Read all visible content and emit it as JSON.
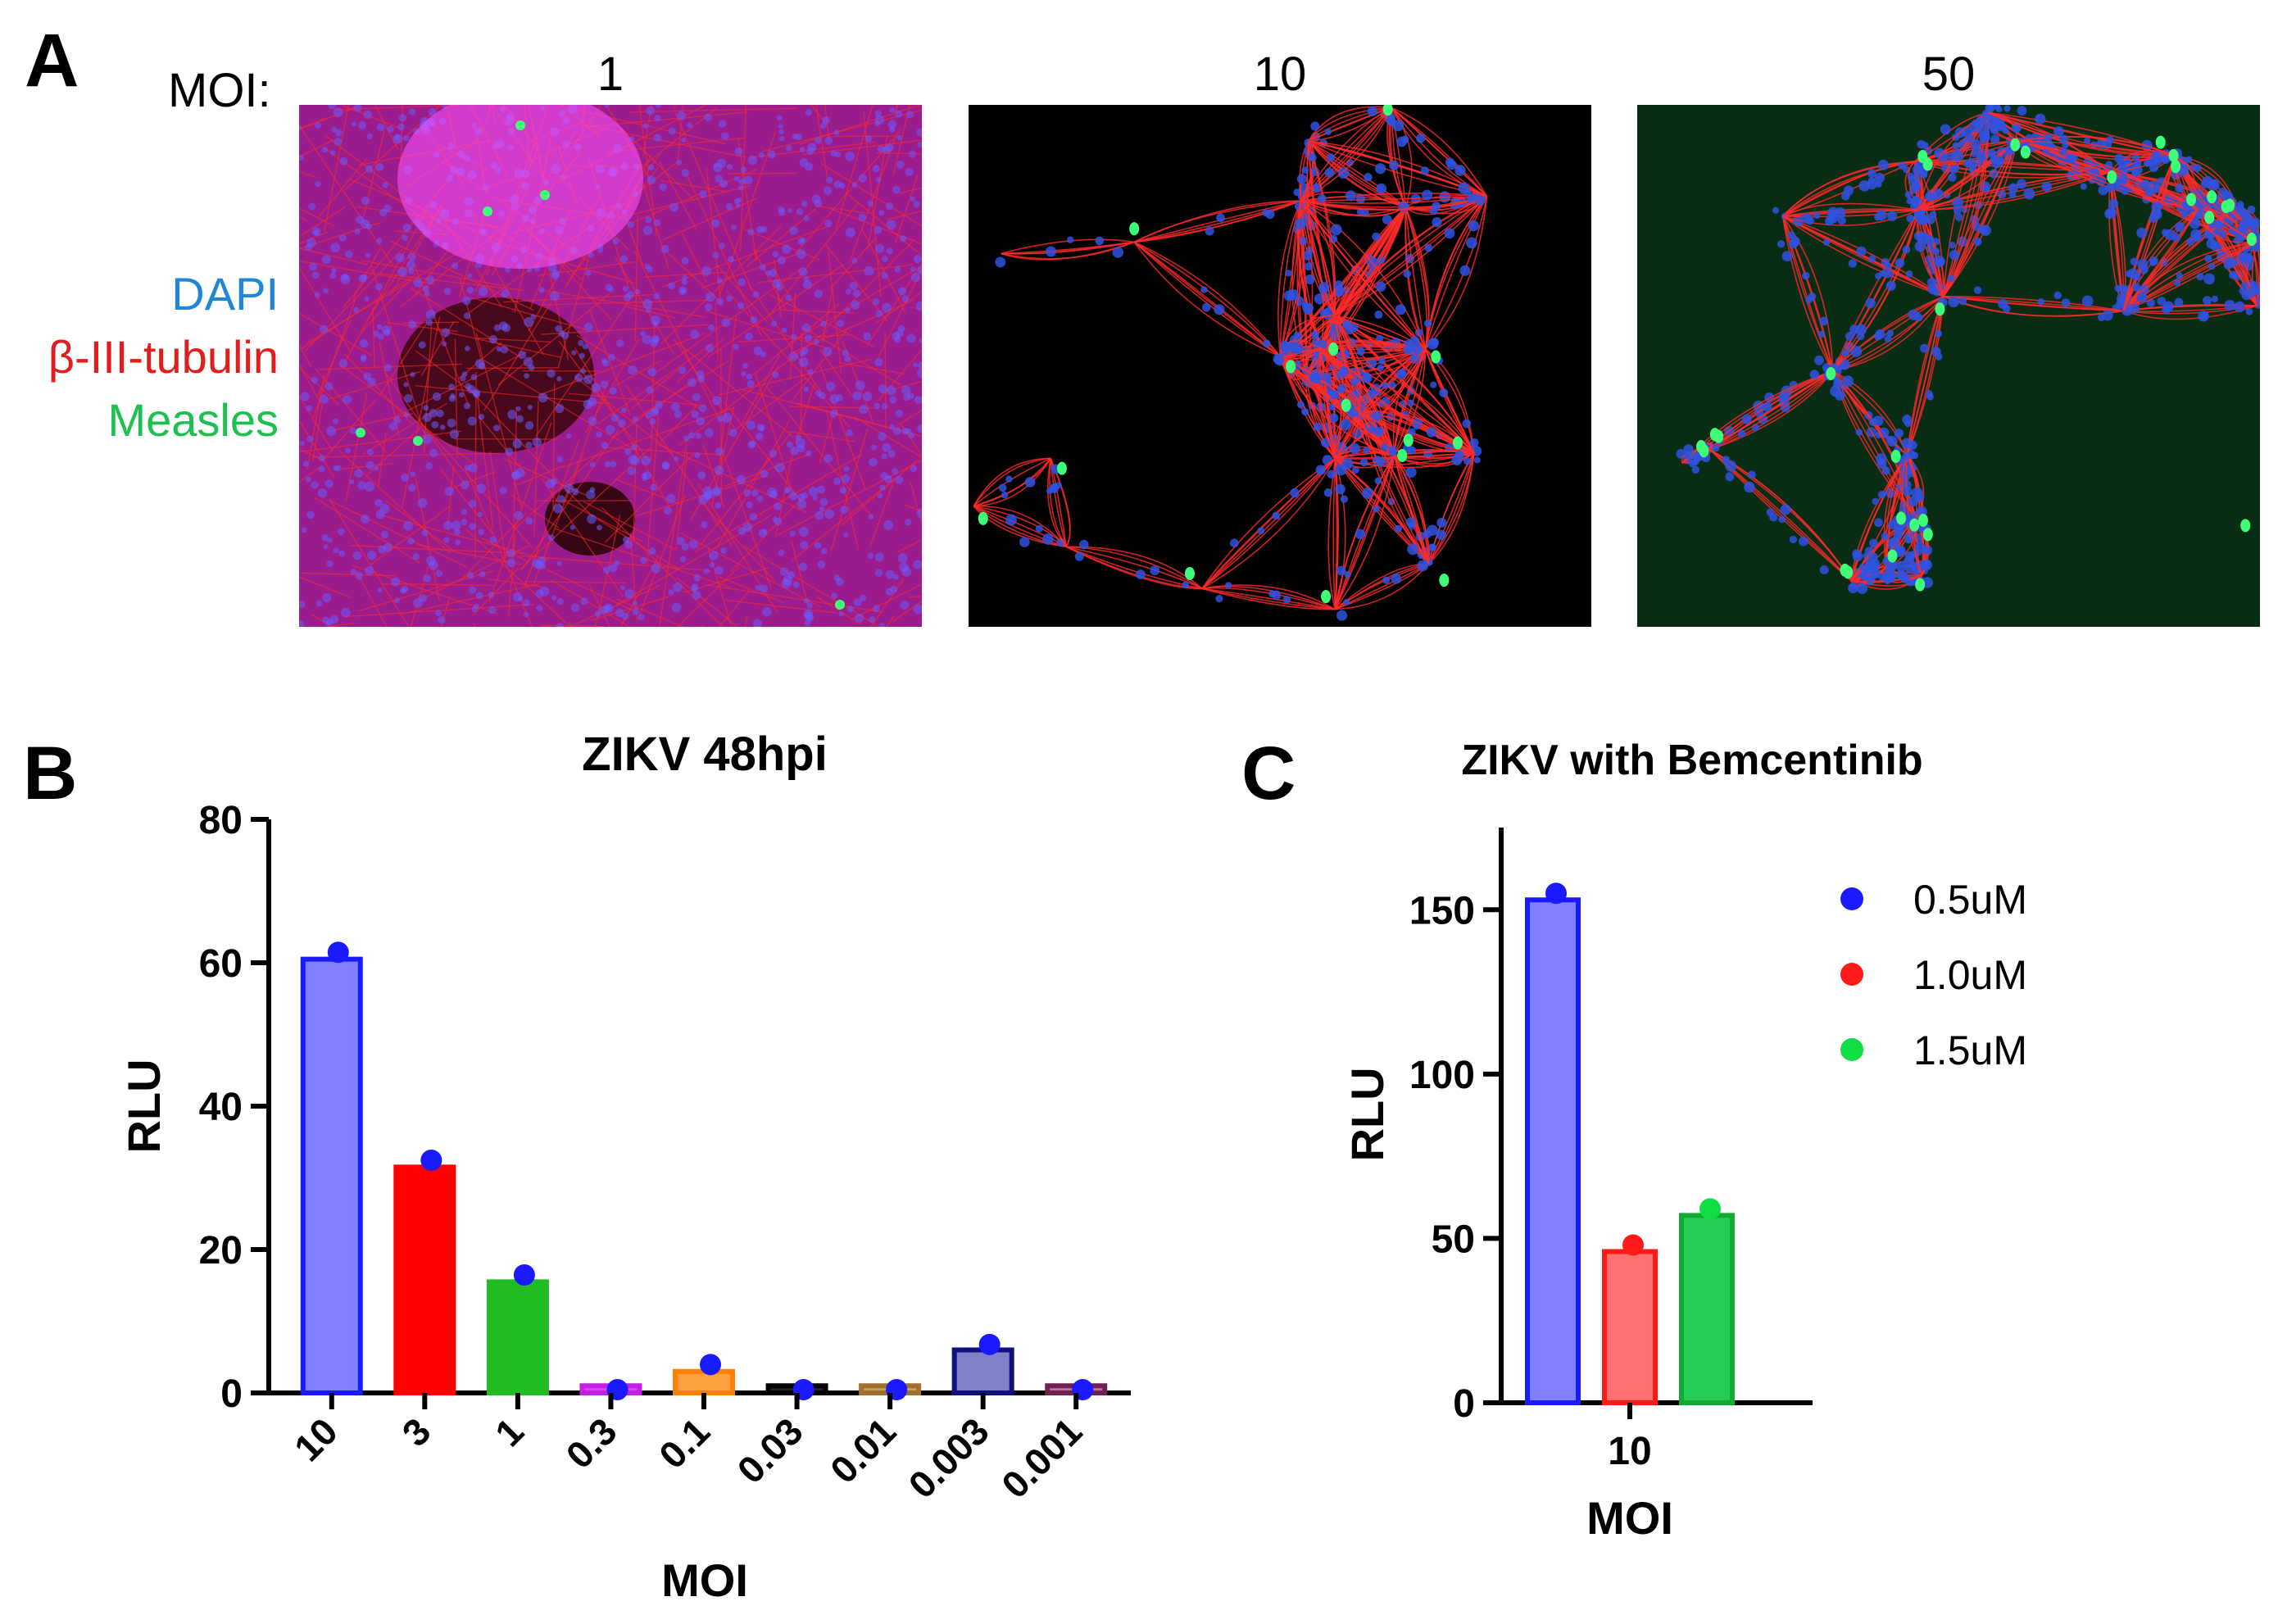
{
  "panelA": {
    "letter": "A",
    "moi_label": "MOI:",
    "images": [
      {
        "moi": "1",
        "style": "dense"
      },
      {
        "moi": "10",
        "style": "network"
      },
      {
        "moi": "50",
        "style": "spread"
      }
    ],
    "stain_legend": [
      {
        "text": "DAPI",
        "color": "#1f87d6"
      },
      {
        "text": "β-III-tubulin",
        "color": "#e11d1d"
      },
      {
        "text": "Measles",
        "color": "#1ec050"
      }
    ]
  },
  "colors": {
    "nuclei": "#2f52e0",
    "tubulin": "#ff2a2a",
    "measles": "#3dff7a",
    "axis": "#000000",
    "dot": "#1a1aff"
  },
  "chart_data": [
    {
      "panel": "B",
      "type": "bar",
      "title": "ZIKV 48hpi",
      "xlabel": "MOI",
      "ylabel": "RLU",
      "ylim": [
        0,
        80
      ],
      "yticks": [
        0,
        20,
        40,
        60,
        80
      ],
      "grid": false,
      "categories": [
        "10",
        "3",
        "1",
        "0.3",
        "0.1",
        "0.03",
        "0.01",
        "0.003",
        "0.001"
      ],
      "values": [
        60.5,
        31.5,
        15.5,
        1,
        3,
        1,
        1,
        6,
        1
      ],
      "points": [
        61,
        32,
        16,
        0,
        3.5,
        0,
        0,
        6.3,
        0
      ],
      "bar_colors": [
        "#8080ff",
        "#ff0000",
        "#22bb22",
        "#e040ff",
        "#ffa040",
        "#222222",
        "#c8a060",
        "#8080c8",
        "#c070a0"
      ],
      "edge_colors": [
        "#1a1aff",
        "#ff0000",
        "#22bb22",
        "#c020e0",
        "#ff8000",
        "#000000",
        "#a07030",
        "#101080",
        "#702050"
      ]
    },
    {
      "panel": "C",
      "type": "bar",
      "title": "ZIKV with Bemcentinib",
      "xlabel": "MOI",
      "ylabel": "RLU",
      "ylim": [
        0,
        175
      ],
      "yticks": [
        0,
        50,
        100,
        150
      ],
      "grid": false,
      "categories": [
        "10"
      ],
      "series": [
        {
          "name": "0.5uM",
          "values": [
            153
          ],
          "point": 154,
          "color": "#8080ff",
          "edge": "#1a1aff",
          "dot": "#1a1aff"
        },
        {
          "name": "1.0uM",
          "values": [
            46
          ],
          "point": 47,
          "color": "#ff7070",
          "edge": "#ff1a1a",
          "dot": "#ff1a1a"
        },
        {
          "name": "1.5uM",
          "values": [
            57
          ],
          "point": 58,
          "color": "#22cc55",
          "edge": "#11aa33",
          "dot": "#11dd44"
        }
      ],
      "legend": "right"
    }
  ]
}
